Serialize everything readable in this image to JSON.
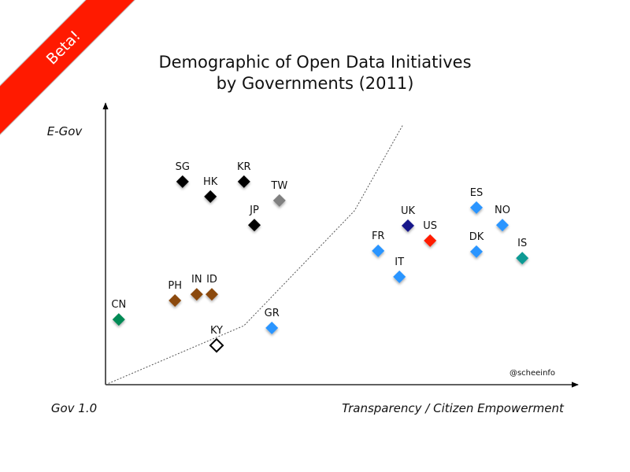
{
  "banner": {
    "label": "Beta!",
    "color": "#ff1a00"
  },
  "chart_data": {
    "type": "scatter",
    "title": "Demographic of Open Data Initiatives",
    "subtitle": "by Governments (2011)",
    "xlabel": "Transparency / Citizen Empowerment",
    "ylabel": "E-Gov",
    "origin_label": "Gov 1.0",
    "credit": "@scheeinfo",
    "xlim": [
      0,
      100
    ],
    "ylim": [
      0,
      100
    ],
    "grid": false,
    "legend": "none",
    "boundary_line": {
      "style": "dotted",
      "points": [
        [
          0,
          0
        ],
        [
          29.3,
          20.9
        ],
        [
          52.7,
          61.6
        ],
        [
          63,
          92.2
        ]
      ]
    },
    "points": [
      {
        "label": "SG",
        "x": 16.3,
        "y": 71.9,
        "color": "#000000",
        "style": "filled"
      },
      {
        "label": "HK",
        "x": 22.2,
        "y": 66.6,
        "color": "#000000",
        "style": "filled"
      },
      {
        "label": "KR",
        "x": 29.3,
        "y": 71.9,
        "color": "#000000",
        "style": "filled"
      },
      {
        "label": "TW",
        "x": 36.8,
        "y": 65.2,
        "color": "#808080",
        "style": "filled"
      },
      {
        "label": "JP",
        "x": 31.5,
        "y": 56.5,
        "color": "#000000",
        "style": "filled"
      },
      {
        "label": "CN",
        "x": 2.8,
        "y": 23.1,
        "color": "#008a55",
        "style": "filled"
      },
      {
        "label": "PH",
        "x": 14.7,
        "y": 29.8,
        "color": "#8b4a10",
        "style": "filled"
      },
      {
        "label": "IN",
        "x": 19.3,
        "y": 32.0,
        "color": "#8b4a10",
        "style": "filled"
      },
      {
        "label": "ID",
        "x": 22.5,
        "y": 32.0,
        "color": "#8b4a10",
        "style": "filled"
      },
      {
        "label": "KY",
        "x": 23.5,
        "y": 13.9,
        "color": "#000000",
        "style": "hollow"
      },
      {
        "label": "GR",
        "x": 35.2,
        "y": 20.1,
        "color": "#2b95ff",
        "style": "filled"
      },
      {
        "label": "FR",
        "x": 57.7,
        "y": 47.4,
        "color": "#2b95ff",
        "style": "filled"
      },
      {
        "label": "IT",
        "x": 62.2,
        "y": 38.2,
        "color": "#2b95ff",
        "style": "filled"
      },
      {
        "label": "UK",
        "x": 64.0,
        "y": 56.3,
        "color": "#14148a",
        "style": "filled"
      },
      {
        "label": "US",
        "x": 68.7,
        "y": 51.0,
        "color": "#ff1a00",
        "style": "filled"
      },
      {
        "label": "ES",
        "x": 78.5,
        "y": 62.7,
        "color": "#2b95ff",
        "style": "filled"
      },
      {
        "label": "NO",
        "x": 84.0,
        "y": 56.5,
        "color": "#2b95ff",
        "style": "filled"
      },
      {
        "label": "DK",
        "x": 78.5,
        "y": 47.1,
        "color": "#2b95ff",
        "style": "filled"
      },
      {
        "label": "IS",
        "x": 88.2,
        "y": 44.8,
        "color": "#0e9a94",
        "style": "filled"
      }
    ]
  }
}
